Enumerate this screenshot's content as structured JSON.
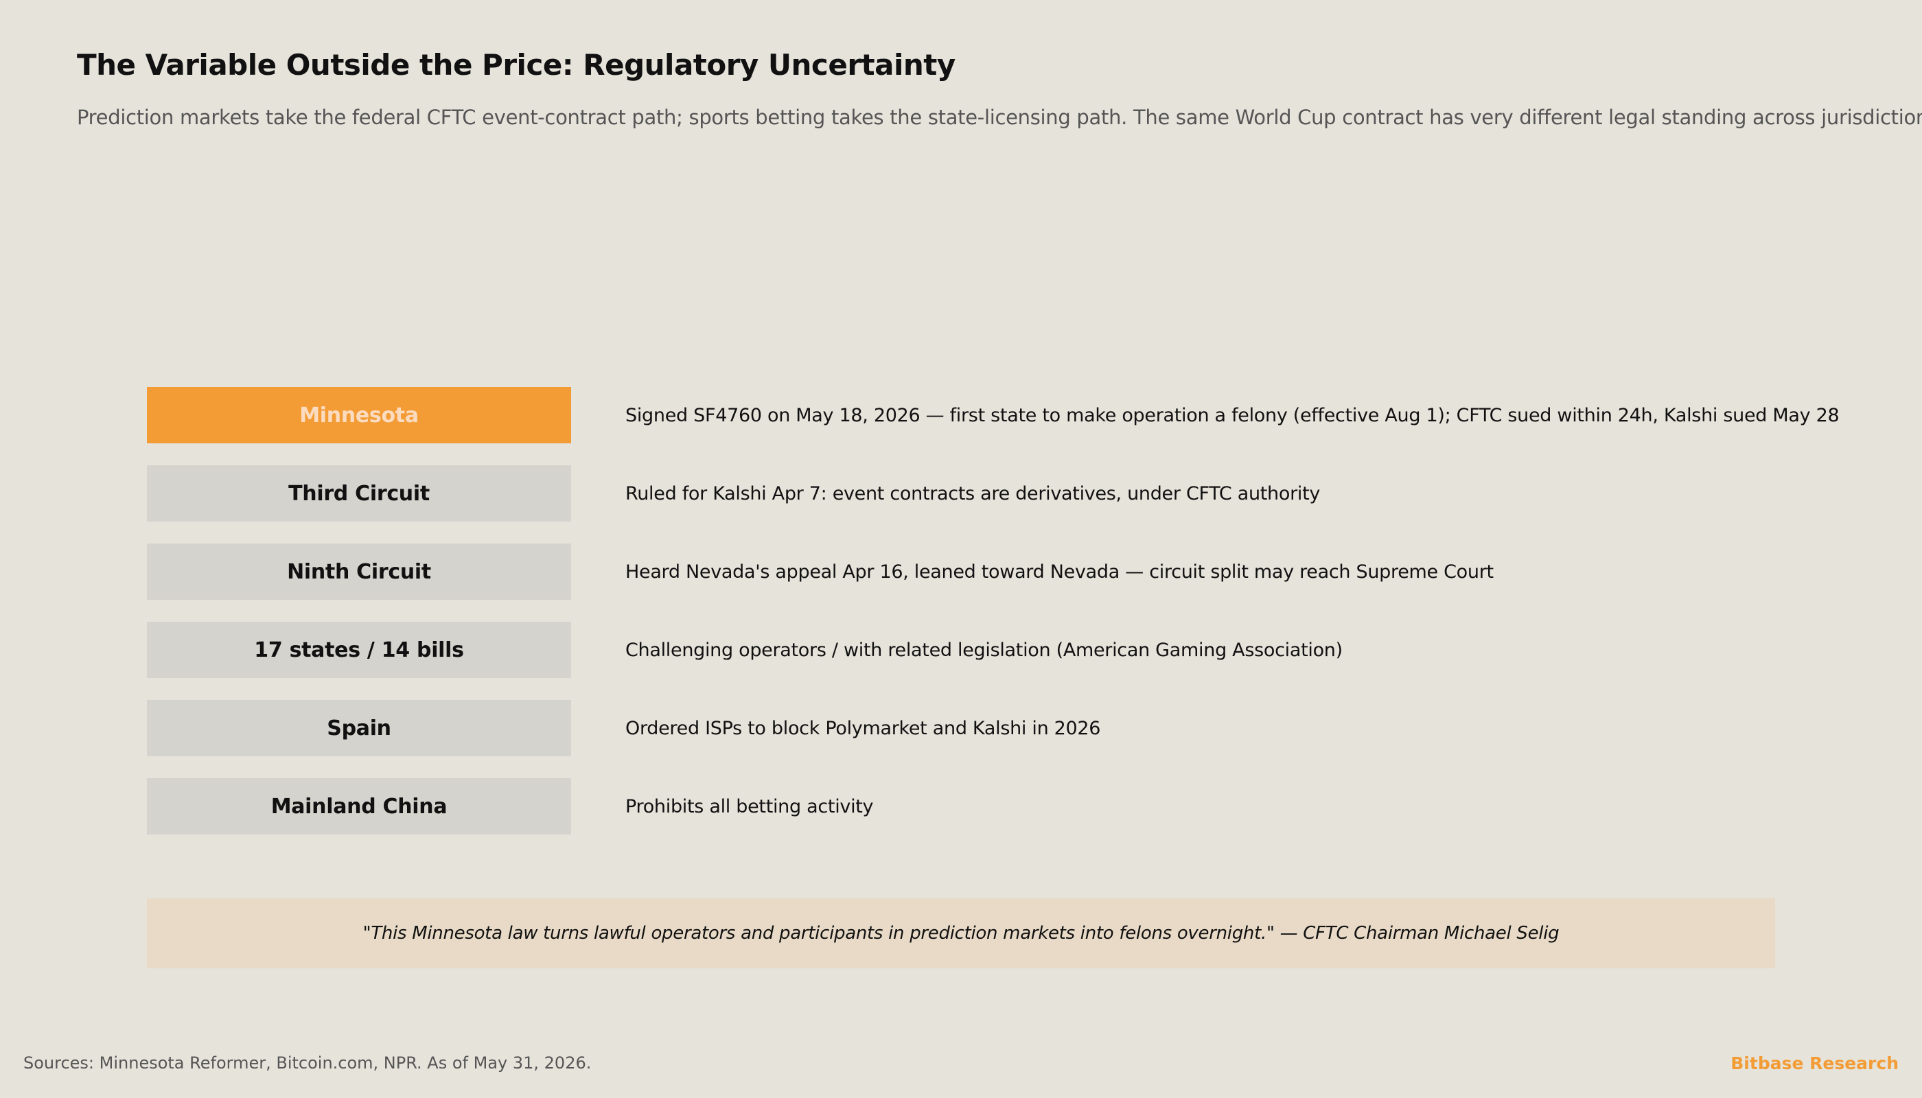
{
  "header": {
    "title": "The Variable Outside the Price: Regulatory Uncertainty",
    "subtitle": "Prediction markets take the federal CFTC event-contract path; sports betting takes the state-licensing path. The same World Cup contract has very different legal standing across jurisdictions."
  },
  "rows": [
    {
      "label": "Minnesota",
      "description": "Signed SF4760 on May 18, 2026 — first state to make operation a felony (effective Aug 1); CFTC sued within 24h, Kalshi sued May 28"
    },
    {
      "label": "Third Circuit",
      "description": "Ruled for Kalshi Apr 7: event contracts are derivatives, under CFTC authority"
    },
    {
      "label": "Ninth Circuit",
      "description": "Heard Nevada's appeal Apr 16, leaned toward Nevada — circuit split may reach Supreme Court"
    },
    {
      "label": "17 states / 14 bills",
      "description": "Challenging operators / with related legislation (American Gaming Association)"
    },
    {
      "label": "Spain",
      "description": "Ordered ISPs to block Polymarket and Kalshi in 2026"
    },
    {
      "label": "Mainland China",
      "description": "Prohibits all betting activity"
    }
  ],
  "quote": "\"This Minnesota law turns lawful operators and participants in prediction markets into felons overnight.\" — CFTC Chairman Michael Selig",
  "footer": {
    "sources": "Sources: Minnesota Reformer, Bitcoin.com, NPR. As of May 31, 2026.",
    "brand": "Bitbase Research"
  }
}
